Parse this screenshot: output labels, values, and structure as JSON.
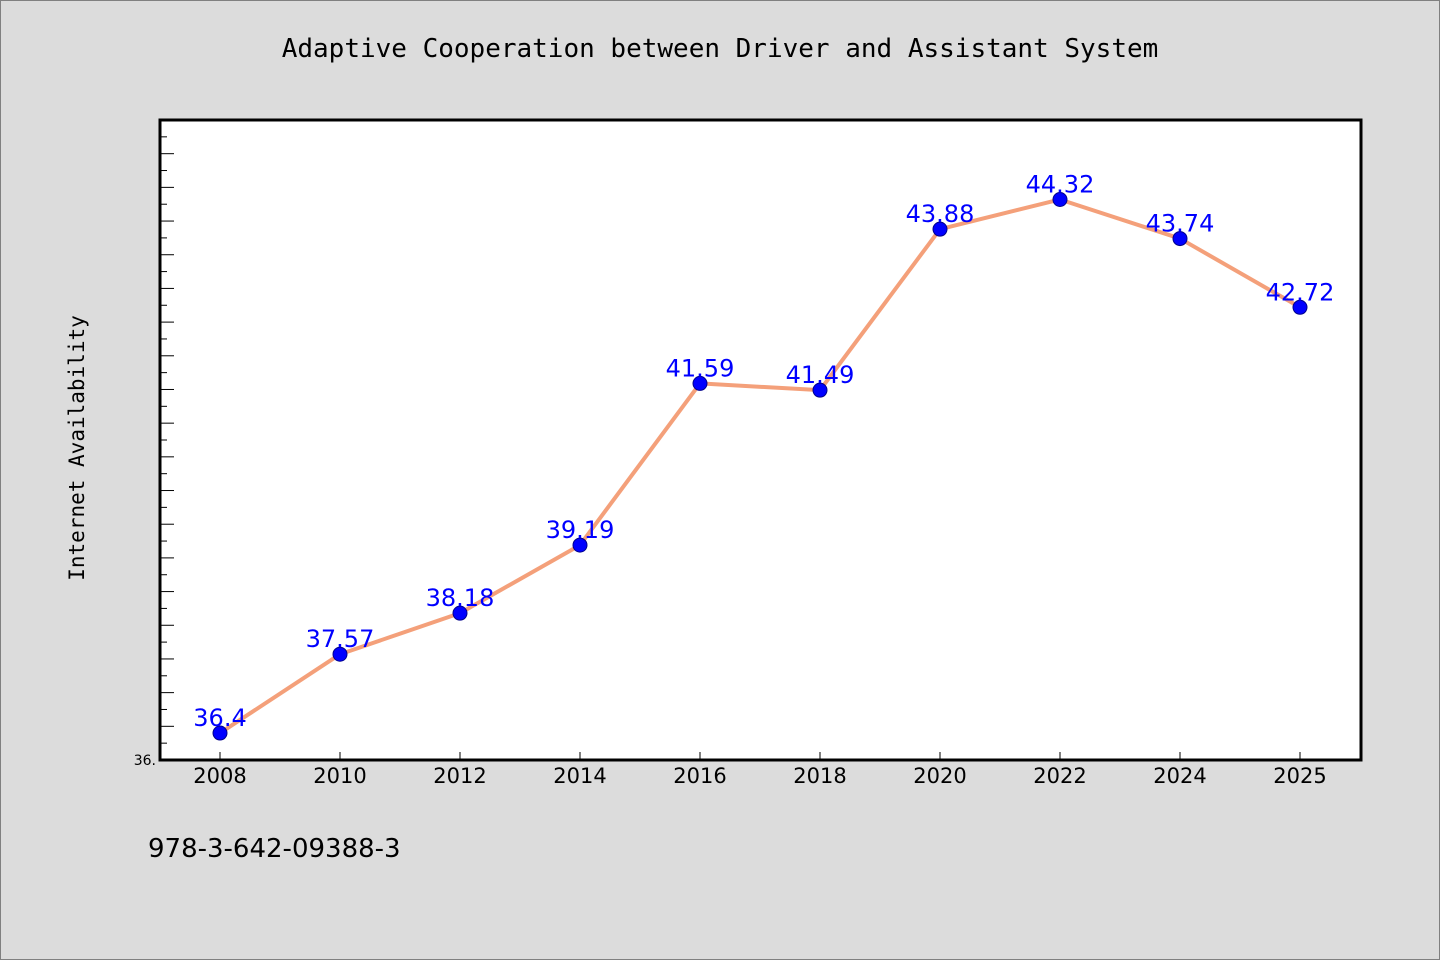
{
  "footer": "978-3-642-09388-3",
  "colors": {
    "background": "#dcdcdc",
    "plot_background": "#ffffff",
    "line": "#f4a07a",
    "marker": "#0000ff",
    "label": "#0000ff"
  },
  "chart_data": {
    "type": "line",
    "title": "Adaptive Cooperation between Driver and Assistant System",
    "xlabel": "",
    "ylabel": "Internet Availability",
    "y_origin_label": "36.",
    "categories": [
      "2008",
      "2010",
      "2012",
      "2014",
      "2016",
      "2018",
      "2020",
      "2022",
      "2024",
      "2025"
    ],
    "series": [
      {
        "values": [
          36.4,
          37.57,
          38.18,
          39.19,
          41.59,
          41.49,
          43.88,
          44.32,
          43.74,
          42.72
        ],
        "labels": [
          "36.4",
          "37.57",
          "38.18",
          "39.19",
          "41.59",
          "41.49",
          "43.88",
          "44.32",
          "43.74",
          "42.72"
        ]
      }
    ],
    "ylim": [
      36.0,
      45.5
    ],
    "grid": false,
    "legend": "none"
  }
}
